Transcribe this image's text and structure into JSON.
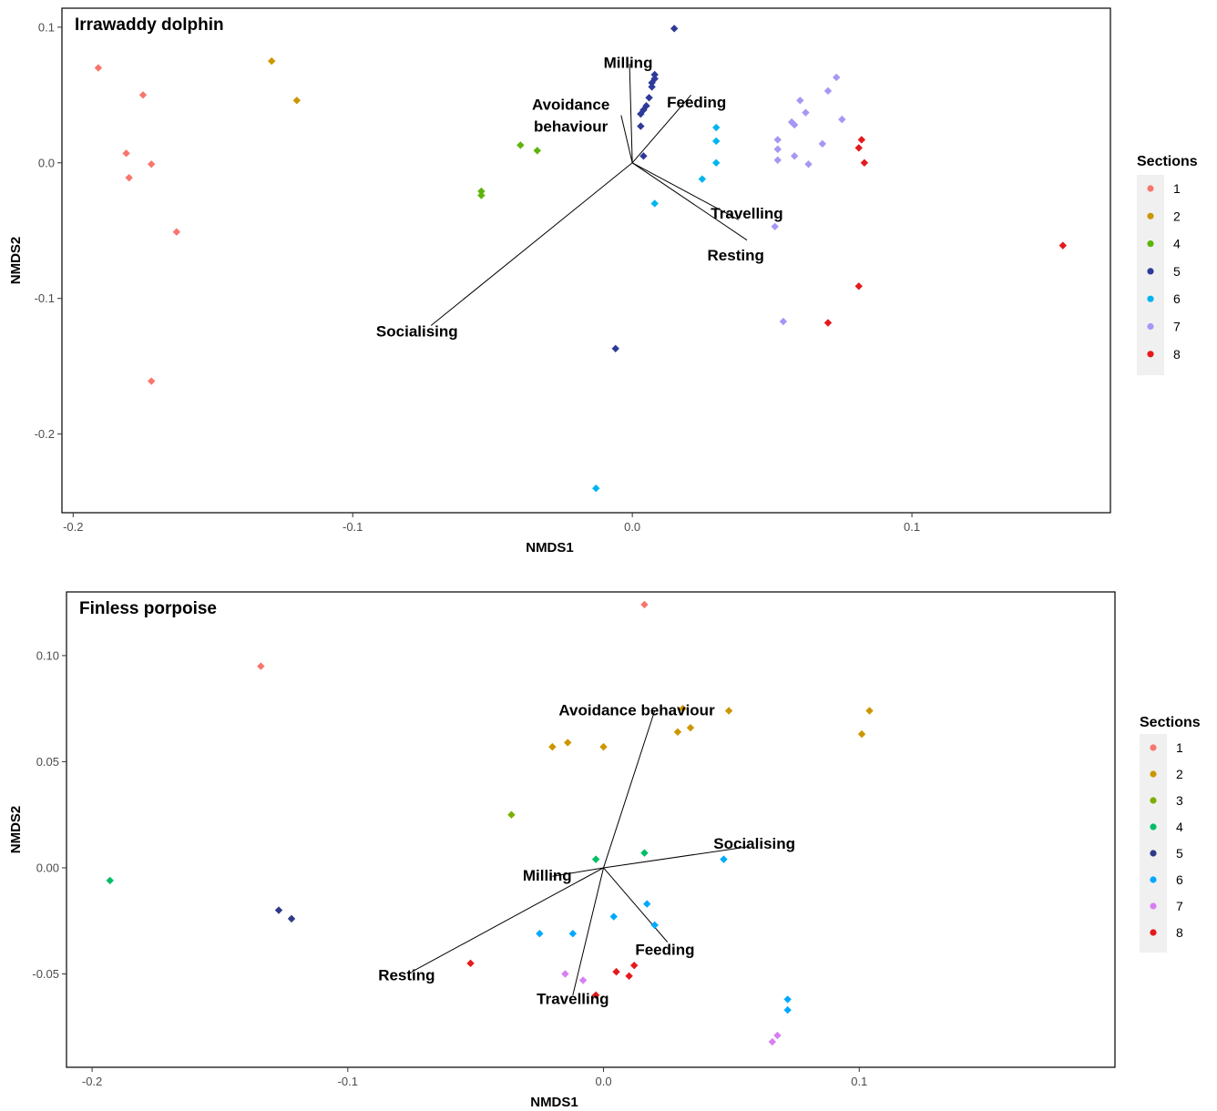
{
  "legend_title": "Sections",
  "chart_data": [
    {
      "type": "scatter",
      "title": "Irrawaddy dolphin",
      "xlabel": "NMDS1",
      "ylabel": "NMDS2",
      "xlim": [
        -0.204,
        0.171
      ],
      "ylim": [
        -0.258,
        0.114
      ],
      "x_ticks": [
        -0.2,
        -0.1,
        0.0,
        0.1
      ],
      "x_tick_labels": [
        "-0.2",
        "-0.1",
        "0.0",
        "0.1"
      ],
      "y_ticks": [
        0.1,
        0.0,
        -0.1,
        -0.2
      ],
      "y_tick_labels": [
        "0.1",
        "0.0",
        "-0.1",
        "-0.2"
      ],
      "grid": false,
      "legend_position": "right",
      "legend": [
        {
          "label": "1",
          "color": "#F8766D"
        },
        {
          "label": "2",
          "color": "#CD9600"
        },
        {
          "label": "4",
          "color": "#5DB40C"
        },
        {
          "label": "5",
          "color": "#2E3A99"
        },
        {
          "label": "6",
          "color": "#00B4EF"
        },
        {
          "label": "7",
          "color": "#A896F5"
        },
        {
          "label": "8",
          "color": "#E41A1C"
        }
      ],
      "vectors": [
        {
          "label": "Milling",
          "x": -0.001,
          "y": 0.073
        },
        {
          "label": "Avoidance\nbehaviour",
          "x": -0.004,
          "y": 0.035
        },
        {
          "label": "Feeding",
          "x": 0.021,
          "y": 0.05
        },
        {
          "label": "Travelling",
          "x": 0.038,
          "y": -0.042
        },
        {
          "label": "Resting",
          "x": 0.041,
          "y": -0.057
        },
        {
          "label": "Socialising",
          "x": -0.072,
          "y": -0.12
        }
      ],
      "vector_labels": [
        {
          "text": "Milling",
          "x": -0.0015,
          "y": 0.074
        },
        {
          "text": "Avoidance",
          "x": -0.022,
          "y": 0.043
        },
        {
          "text": "behaviour",
          "x": -0.022,
          "y": 0.027
        },
        {
          "text": "Feeding",
          "x": 0.023,
          "y": 0.045
        },
        {
          "text": "Travelling",
          "x": 0.041,
          "y": -0.037
        },
        {
          "text": "Resting",
          "x": 0.037,
          "y": -0.068
        },
        {
          "text": "Socialising",
          "x": -0.077,
          "y": -0.124
        }
      ],
      "series": [
        {
          "name": "1",
          "x": [
            -0.191,
            -0.175,
            -0.181,
            -0.172,
            -0.18,
            -0.163,
            -0.172
          ],
          "y": [
            0.07,
            0.05,
            0.007,
            -0.001,
            -0.011,
            -0.051,
            -0.161
          ]
        },
        {
          "name": "2",
          "x": [
            -0.129,
            -0.12
          ],
          "y": [
            0.075,
            0.046
          ]
        },
        {
          "name": "4",
          "x": [
            -0.04,
            -0.034,
            -0.054,
            -0.054
          ],
          "y": [
            0.013,
            0.009,
            -0.021,
            -0.024
          ]
        },
        {
          "name": "5",
          "x": [
            0.015,
            0.008,
            0.008,
            0.007,
            0.007,
            0.006,
            0.005,
            0.004,
            0.003,
            0.003,
            0.004,
            -0.006
          ],
          "y": [
            0.099,
            0.065,
            0.062,
            0.059,
            0.056,
            0.048,
            0.042,
            0.039,
            0.036,
            0.027,
            0.005,
            -0.137
          ]
        },
        {
          "name": "6",
          "x": [
            0.03,
            0.03,
            0.03,
            0.025,
            0.008,
            -0.013
          ],
          "y": [
            0.026,
            0.016,
            0.0,
            -0.012,
            -0.03,
            -0.24
          ]
        },
        {
          "name": "7",
          "x": [
            0.073,
            0.07,
            0.06,
            0.062,
            0.075,
            0.057,
            0.058,
            0.052,
            0.052,
            0.068,
            0.058,
            0.052,
            0.063,
            0.051,
            0.054
          ],
          "y": [
            0.063,
            0.053,
            0.046,
            0.037,
            0.032,
            0.03,
            0.028,
            0.017,
            0.01,
            0.014,
            0.005,
            0.002,
            -0.001,
            -0.047,
            -0.117
          ]
        },
        {
          "name": "8",
          "x": [
            0.082,
            0.081,
            0.083,
            0.154,
            0.081,
            0.07
          ],
          "y": [
            0.017,
            0.011,
            0.0,
            -0.061,
            -0.091,
            -0.118
          ]
        }
      ]
    },
    {
      "type": "scatter",
      "title": "Finless porpoise",
      "xlabel": "NMDS1",
      "ylabel": "NMDS2",
      "xlim": [
        -0.21,
        0.2
      ],
      "ylim": [
        -0.094,
        0.13
      ],
      "x_ticks": [
        -0.2,
        -0.1,
        0.0,
        0.1
      ],
      "x_tick_labels": [
        "-0.2",
        "-0.1",
        "0.0",
        "0.1"
      ],
      "y_ticks": [
        0.1,
        0.05,
        0.0,
        -0.05
      ],
      "y_tick_labels": [
        "0.10",
        "0.05",
        "0.00",
        "-0.05"
      ],
      "grid": false,
      "legend_position": "right",
      "legend": [
        {
          "label": "1",
          "color": "#F8766D"
        },
        {
          "label": "2",
          "color": "#CD9600"
        },
        {
          "label": "3",
          "color": "#7CAE00"
        },
        {
          "label": "4",
          "color": "#00BE67"
        },
        {
          "label": "5",
          "color": "#2E3A87"
        },
        {
          "label": "6",
          "color": "#00A9FF"
        },
        {
          "label": "7",
          "color": "#D77FF2"
        },
        {
          "label": "8",
          "color": "#E41A1C"
        }
      ],
      "vectors": [
        {
          "label": "Avoidance behaviour",
          "x": 0.02,
          "y": 0.074
        },
        {
          "label": "Socialising",
          "x": 0.057,
          "y": 0.01
        },
        {
          "label": "Milling",
          "x": -0.02,
          "y": -0.004
        },
        {
          "label": "Feeding",
          "x": 0.025,
          "y": -0.035
        },
        {
          "label": "Resting",
          "x": -0.075,
          "y": -0.049
        },
        {
          "label": "Travelling",
          "x": -0.012,
          "y": -0.06
        }
      ],
      "vector_labels": [
        {
          "text": "Avoidance behaviour",
          "x": 0.013,
          "y": 0.0745
        },
        {
          "text": "Socialising",
          "x": 0.059,
          "y": 0.0115
        },
        {
          "text": "Milling",
          "x": -0.022,
          "y": -0.0035
        },
        {
          "text": "Feeding",
          "x": 0.024,
          "y": -0.0385
        },
        {
          "text": "Resting",
          "x": -0.077,
          "y": -0.0505
        },
        {
          "text": "Travelling",
          "x": -0.012,
          "y": -0.0615
        }
      ],
      "series": [
        {
          "name": "1",
          "x": [
            0.016,
            -0.134
          ],
          "y": [
            0.124,
            0.095
          ]
        },
        {
          "name": "2",
          "x": [
            0.049,
            0.104,
            0.101,
            0.031,
            0.034,
            0.029,
            -0.014,
            -0.02,
            0.0
          ],
          "y": [
            0.074,
            0.074,
            0.063,
            0.075,
            0.066,
            0.064,
            0.059,
            0.057,
            0.057
          ]
        },
        {
          "name": "3",
          "x": [
            -0.036
          ],
          "y": [
            0.025
          ]
        },
        {
          "name": "4",
          "x": [
            0.016,
            -0.003,
            -0.193
          ],
          "y": [
            0.007,
            0.004,
            -0.006
          ]
        },
        {
          "name": "5",
          "x": [
            -0.127,
            -0.122
          ],
          "y": [
            -0.02,
            -0.024
          ]
        },
        {
          "name": "6",
          "x": [
            0.047,
            0.017,
            0.02,
            0.004,
            -0.025,
            -0.012,
            0.072,
            0.072
          ],
          "y": [
            0.004,
            -0.017,
            -0.027,
            -0.023,
            -0.031,
            -0.031,
            -0.062,
            -0.067
          ]
        },
        {
          "name": "7",
          "x": [
            -0.015,
            -0.008,
            0.068,
            0.066
          ],
          "y": [
            -0.05,
            -0.053,
            -0.079,
            -0.082
          ]
        },
        {
          "name": "8",
          "x": [
            -0.052,
            0.012,
            0.005,
            0.01,
            -0.003
          ],
          "y": [
            -0.045,
            -0.046,
            -0.049,
            -0.051,
            -0.06
          ]
        }
      ]
    }
  ]
}
